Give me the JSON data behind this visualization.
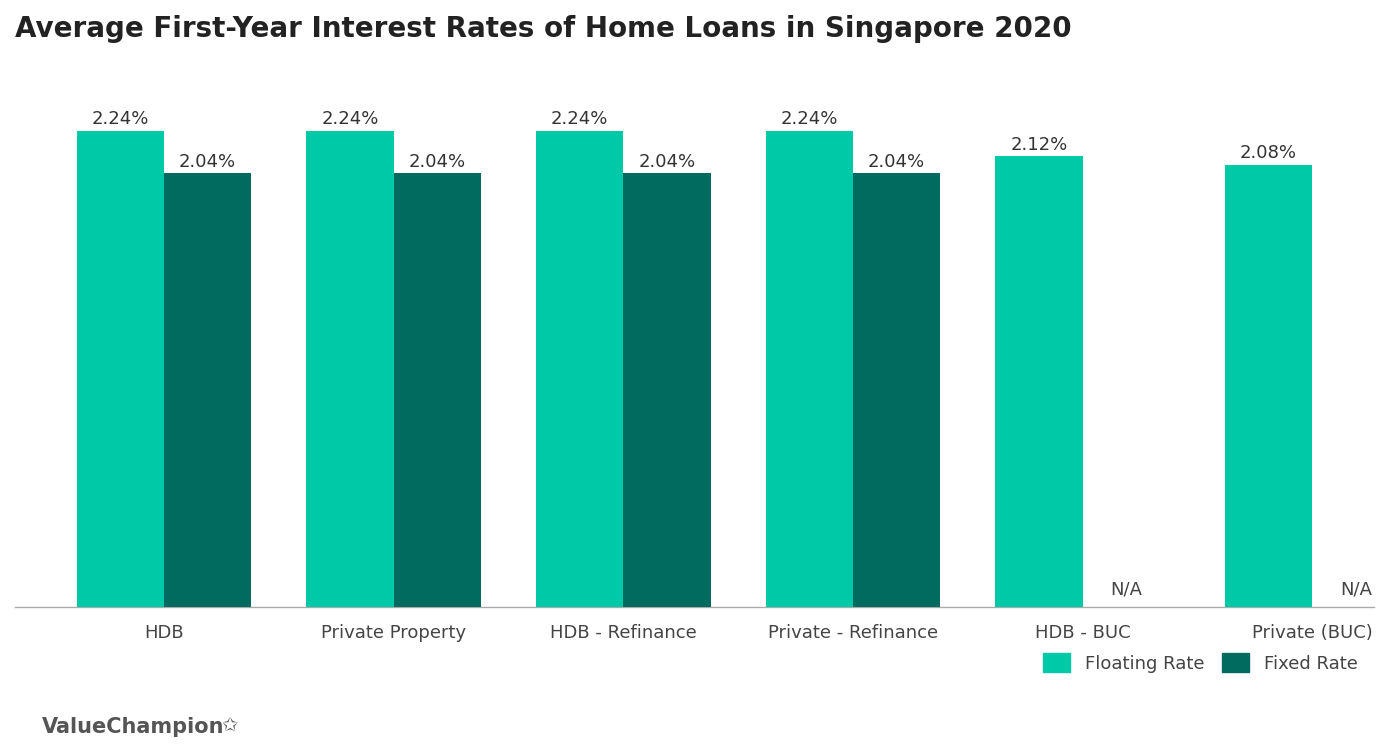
{
  "title": "Average First-Year Interest Rates of Home Loans in Singapore 2020",
  "categories": [
    "HDB",
    "Private Property",
    "HDB - Refinance",
    "Private - Refinance",
    "HDB - BUC",
    "Private (BUC)"
  ],
  "floating_rates": [
    2.24,
    2.24,
    2.24,
    2.24,
    2.12,
    2.08
  ],
  "fixed_rates": [
    2.04,
    2.04,
    2.04,
    2.04,
    null,
    null
  ],
  "floating_color": "#00C9A7",
  "fixed_color": "#006B5E",
  "bar_width": 0.38,
  "ylim": [
    0,
    2.55
  ],
  "floating_label": "Floating Rate",
  "fixed_label": "Fixed Rate",
  "na_text": "N/A",
  "watermark": "ValueChampion",
  "title_fontsize": 20,
  "label_fontsize": 13,
  "tick_fontsize": 13,
  "annot_fontsize": 13,
  "background_color": "#ffffff",
  "na_fontsize": 13
}
